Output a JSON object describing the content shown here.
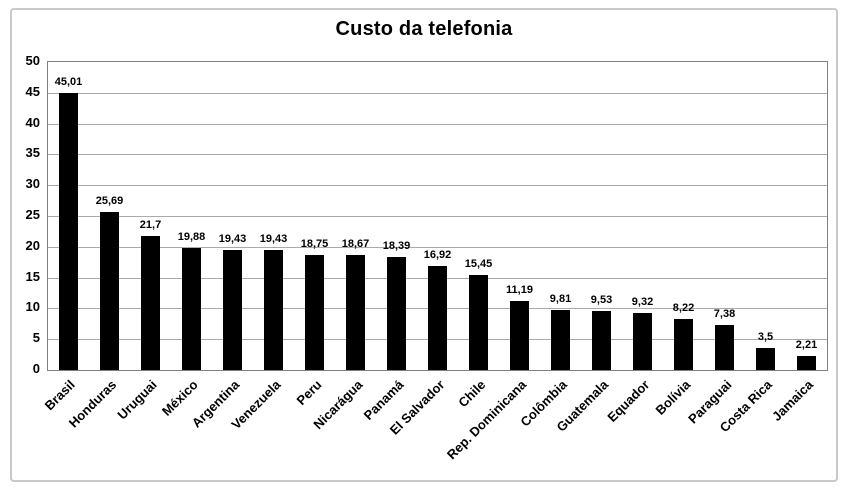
{
  "chart_data": {
    "type": "bar",
    "title": "Custo da telefonia",
    "categories": [
      "Brasil",
      "Honduras",
      "Uruguai",
      "México",
      "Argentina",
      "Venezuela",
      "Peru",
      "Nicarágua",
      "Panamá",
      "El Salvador",
      "Chile",
      "Rep. Dominicana",
      "Colômbia",
      "Guatemala",
      "Equador",
      "Bolívia",
      "Paraguai",
      "Costa Rica",
      "Jamaica"
    ],
    "values": [
      45.01,
      25.69,
      21.7,
      19.88,
      19.43,
      19.43,
      18.75,
      18.67,
      18.39,
      16.92,
      15.45,
      11.19,
      9.81,
      9.53,
      9.32,
      8.22,
      7.38,
      3.5,
      2.21
    ],
    "value_labels": [
      "45,01",
      "25,69",
      "21,7",
      "19,88",
      "19,43",
      "19,43",
      "18,75",
      "18,67",
      "18,39",
      "16,92",
      "15,45",
      "11,19",
      "9,81",
      "9,53",
      "9,32",
      "8,22",
      "7,38",
      "3,5",
      "2,21"
    ],
    "xlabel": "",
    "ylabel": "",
    "ylim": [
      0,
      50
    ],
    "yticks": [
      0,
      5,
      10,
      15,
      20,
      25,
      30,
      35,
      40,
      45,
      50
    ],
    "grid": true,
    "legend": false,
    "bar_color": "#000000",
    "gridline_color": "#aaaaaa",
    "plot_border_color": "#808080",
    "frame_border_color": "#c9c9c9",
    "text_color": "#000000",
    "background_color": "#ffffff"
  }
}
